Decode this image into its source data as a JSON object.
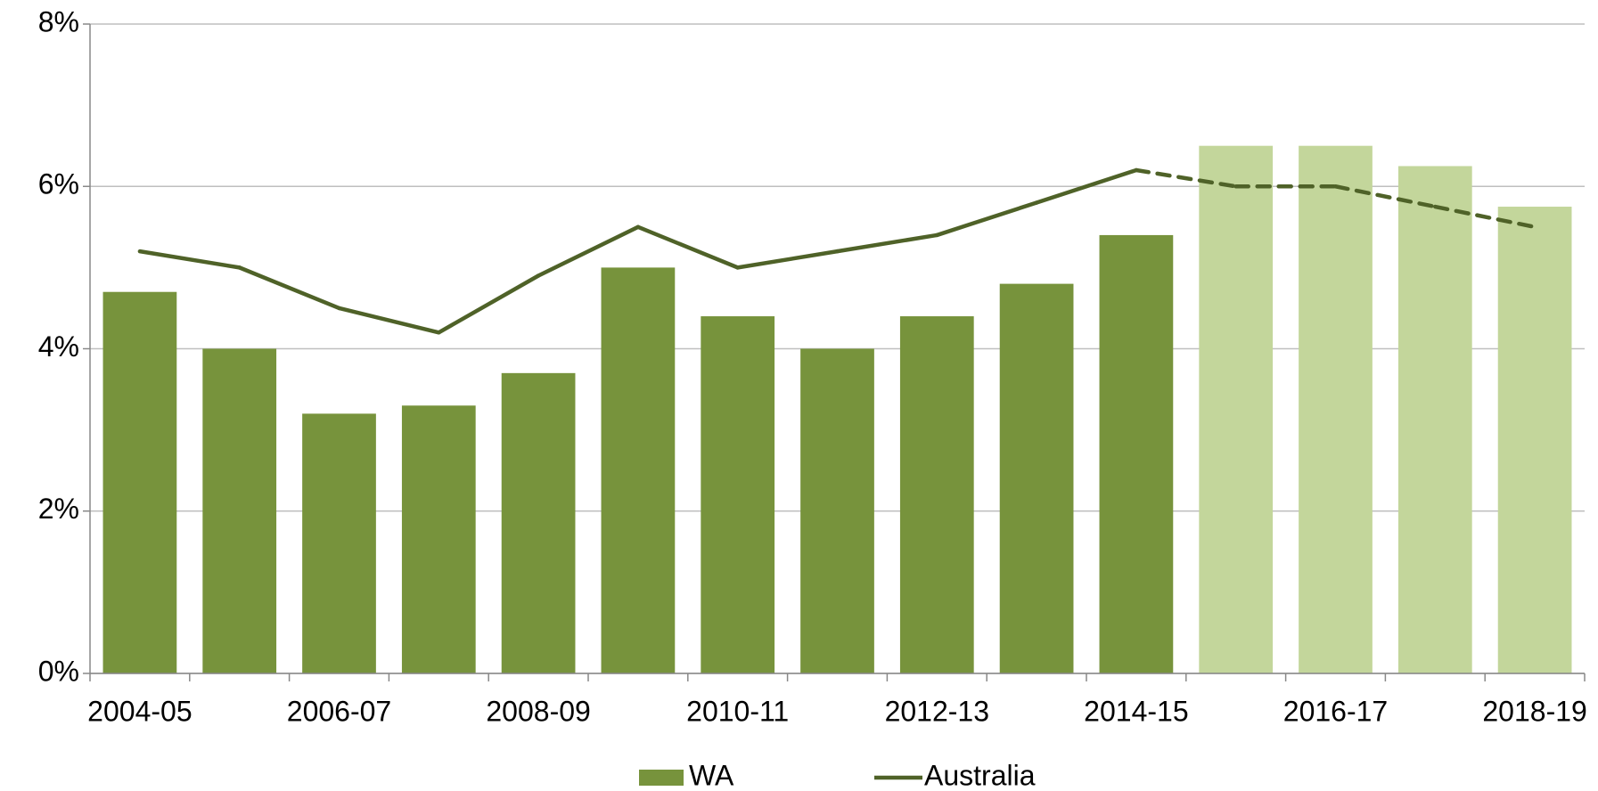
{
  "chart_data": {
    "type": "bar",
    "categories": [
      "2004-05",
      null,
      "2006-07",
      null,
      "2008-09",
      null,
      "2010-11",
      null,
      "2012-13",
      null,
      "2014-15",
      null,
      "2016-17",
      null,
      "2018-19"
    ],
    "series": [
      {
        "name": "WA",
        "type": "bar",
        "color": "#77933c",
        "colors": [
          "#77933c",
          "#77933c",
          "#77933c",
          "#77933c",
          "#77933c",
          "#77933c",
          "#77933c",
          "#77933c",
          "#77933c",
          "#77933c",
          "#77933c",
          "#c3d69b",
          "#c3d69b",
          "#c3d69b",
          "#c3d69b"
        ],
        "values": [
          4.7,
          4.0,
          3.2,
          3.3,
          3.7,
          5.0,
          4.4,
          4.0,
          4.4,
          4.8,
          5.4,
          6.5,
          6.5,
          6.25,
          5.75
        ]
      },
      {
        "name": "Australia",
        "type": "line",
        "color": "#4f6228",
        "dashed": [
          false,
          false,
          false,
          false,
          false,
          false,
          false,
          false,
          false,
          false,
          false,
          true,
          true,
          true,
          true
        ],
        "values": [
          5.2,
          5.0,
          4.5,
          4.2,
          4.9,
          5.5,
          5.0,
          5.2,
          5.4,
          5.8,
          6.2,
          6.0,
          6.0,
          5.75,
          5.5
        ]
      }
    ],
    "ylim": [
      0,
      8
    ],
    "yticks": [
      {
        "value": 0,
        "label": "0%"
      },
      {
        "value": 2,
        "label": "2%"
      },
      {
        "value": 4,
        "label": "4%"
      },
      {
        "value": 6,
        "label": "6%"
      },
      {
        "value": 8,
        "label": "8%"
      }
    ],
    "grid": true,
    "legend": "bottom"
  }
}
